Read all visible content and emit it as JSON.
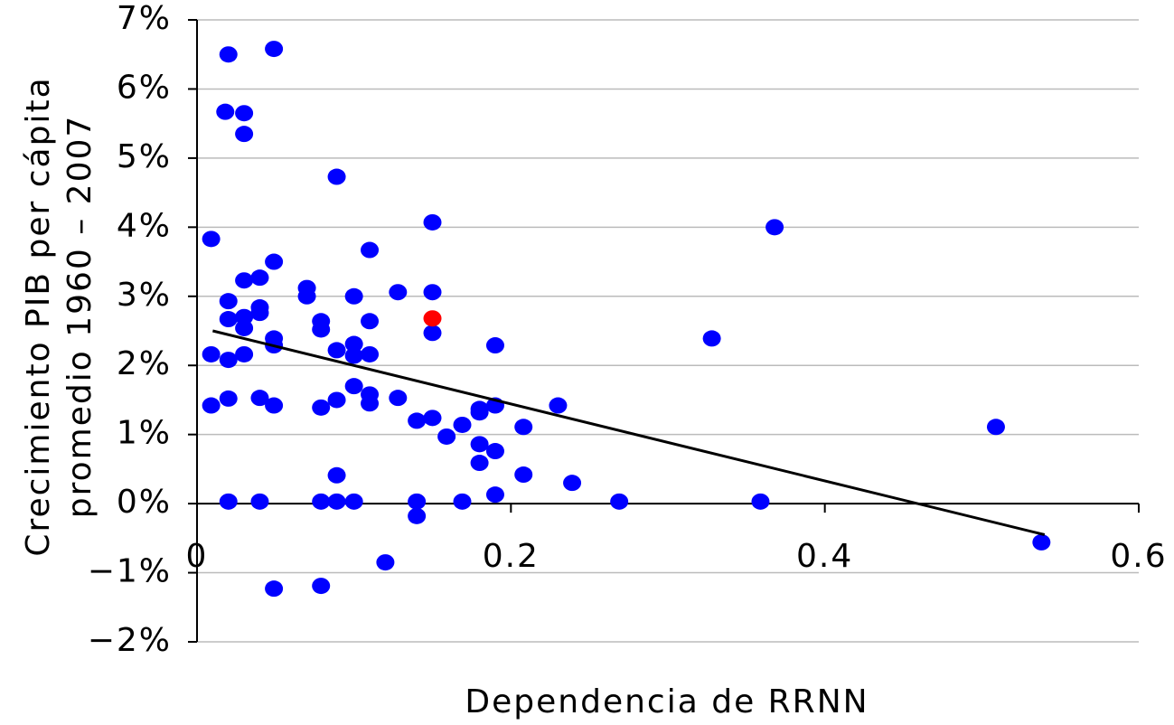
{
  "chart_data": {
    "type": "scatter",
    "x_label": "Dependencia de RRNN",
    "y_label": [
      "Crecimiento PIB per cápita",
      "promedio 1960 – 2007"
    ],
    "xlim": [
      0,
      0.6
    ],
    "xticks": [
      0,
      0.2,
      0.4,
      0.6
    ],
    "ylim": [
      -2,
      7
    ],
    "yticks": [
      {
        "value": -2,
        "label": "−2%"
      },
      {
        "value": -1,
        "label": "−1%"
      },
      {
        "value": 0,
        "label": "0%"
      },
      {
        "value": 1,
        "label": "1%"
      },
      {
        "value": 2,
        "label": "2%"
      },
      {
        "value": 3,
        "label": "3%"
      },
      {
        "value": 4,
        "label": "4%"
      },
      {
        "value": 5,
        "label": "5%"
      },
      {
        "value": 6,
        "label": "6%"
      },
      {
        "value": 7,
        "label": "7%"
      }
    ],
    "grid": true,
    "series": [
      {
        "color": "#0000ff",
        "x": [
          0.009,
          0.02,
          0.018,
          0.03,
          0.03,
          0.049,
          0.089,
          0.15,
          0.368,
          0.049,
          0.03,
          0.04,
          0.11,
          0.07,
          0.07,
          0.1,
          0.128,
          0.15,
          0.02,
          0.04,
          0.04,
          0.03,
          0.02,
          0.03,
          0.079,
          0.079,
          0.11,
          0.15,
          0.049,
          0.049,
          0.1,
          0.19,
          0.328,
          0.009,
          0.02,
          0.03,
          0.089,
          0.1,
          0.11,
          0.1,
          0.11,
          0.11,
          0.009,
          0.02,
          0.04,
          0.049,
          0.079,
          0.089,
          0.128,
          0.14,
          0.15,
          0.159,
          0.169,
          0.18,
          0.18,
          0.19,
          0.208,
          0.23,
          0.509,
          0.18,
          0.19,
          0.18,
          0.089,
          0.208,
          0.239,
          0.19,
          0.02,
          0.04,
          0.079,
          0.089,
          0.1,
          0.14,
          0.169,
          0.269,
          0.359,
          0.14,
          0.538,
          0.12,
          0.049,
          0.079
        ],
        "values": [
          3.83,
          6.5,
          5.67,
          5.65,
          5.35,
          6.58,
          4.73,
          4.07,
          4.0,
          3.5,
          3.23,
          3.27,
          3.67,
          3.12,
          3.0,
          3.0,
          3.06,
          3.06,
          2.93,
          2.84,
          2.76,
          2.7,
          2.67,
          2.54,
          2.64,
          2.52,
          2.64,
          2.47,
          2.39,
          2.29,
          2.31,
          2.29,
          2.39,
          2.16,
          2.08,
          2.16,
          2.22,
          2.14,
          2.16,
          1.7,
          1.58,
          1.45,
          1.42,
          1.52,
          1.53,
          1.42,
          1.39,
          1.5,
          1.53,
          1.2,
          1.24,
          0.97,
          1.14,
          1.37,
          1.32,
          1.42,
          1.11,
          1.42,
          1.11,
          0.86,
          0.76,
          0.59,
          0.41,
          0.42,
          0.3,
          0.13,
          0.03,
          0.03,
          0.03,
          0.03,
          0.03,
          0.03,
          0.03,
          0.03,
          0.03,
          -0.18,
          -0.56,
          -0.85,
          -1.23,
          -1.19
        ]
      },
      {
        "color": "#ff0000",
        "x": [
          0.15
        ],
        "values": [
          2.68
        ]
      }
    ],
    "trendline": {
      "color": "#000000",
      "x": [
        0.01,
        0.54
      ],
      "y": [
        2.5,
        -0.45
      ]
    }
  }
}
